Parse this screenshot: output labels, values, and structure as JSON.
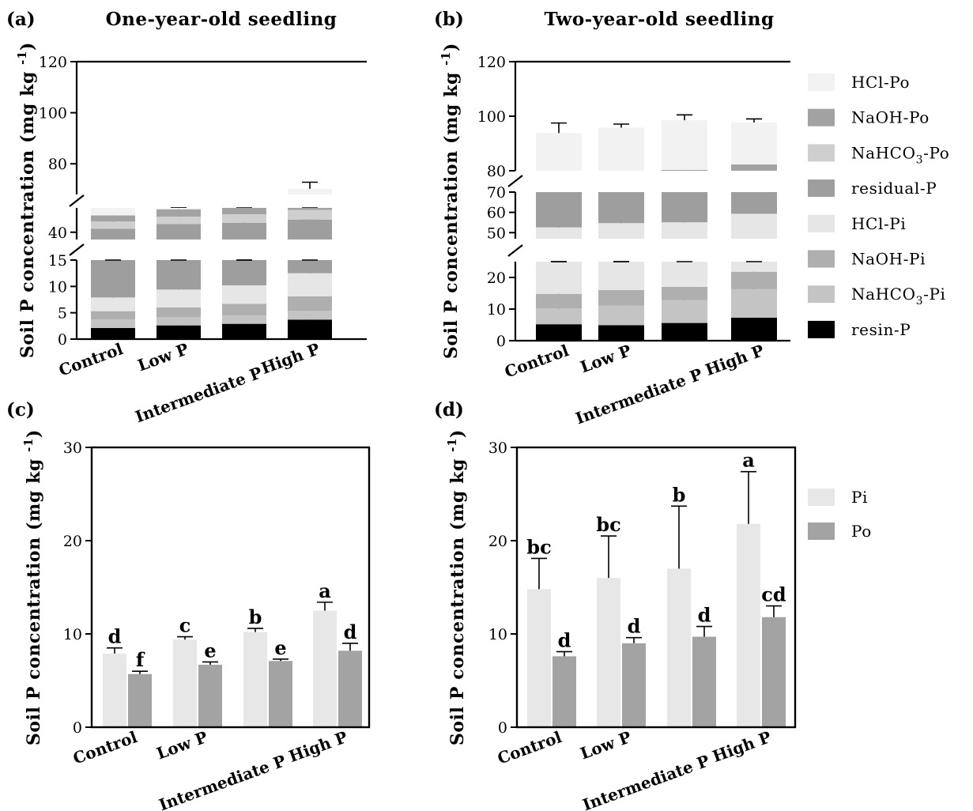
{
  "colors": {
    "resin-P": "#000000",
    "NaHCO3-Pi": "#c4c4c4",
    "NaOH-Pi": "#afafaf",
    "HCl-Pi": "#e6e6e6",
    "residual-P": "#9e9e9e",
    "NaHCO3-Po": "#cfcfcf",
    "NaOH-Po": "#a2a2a2",
    "HCl-Po": "#f2f2f2",
    "Pi": "#e7e7e7",
    "Po": "#a3a3a3"
  },
  "legend_top": {
    "items": [
      {
        "key": "HCl-Po",
        "label": "HCl-Po"
      },
      {
        "key": "NaOH-Po",
        "label": "NaOH-Po"
      },
      {
        "key": "NaHCO3-Po",
        "label": "NaHCO₃-Po"
      },
      {
        "key": "residual-P",
        "label": "residual-P"
      },
      {
        "key": "HCl-Pi",
        "label": "HCl-Pi"
      },
      {
        "key": "NaOH-Pi",
        "label": "NaOH-Pi"
      },
      {
        "key": "NaHCO3-Pi",
        "label": "NaHCO₃-Pi"
      },
      {
        "key": "resin-P",
        "label": "resin-P"
      }
    ]
  },
  "legend_bottom": {
    "items": [
      {
        "key": "Pi",
        "label": "Pi"
      },
      {
        "key": "Po",
        "label": "Po"
      }
    ]
  },
  "chart_data": [
    {
      "panel": "(a)",
      "title": "One-year-old seedling",
      "type": "bar",
      "stacked": true,
      "broken_axis": true,
      "ylabel": "Soil P concentration (mg kg⁻¹)",
      "categories": [
        "Control",
        "Low P",
        "Intermediate P",
        "High P"
      ],
      "y_segments": [
        {
          "range": [
            0,
            15
          ],
          "ticks": [
            0,
            5,
            10,
            15
          ]
        },
        {
          "range": [
            37,
            50
          ],
          "ticks": [
            40
          ]
        },
        {
          "range": [
            68,
            120
          ],
          "ticks": [
            80,
            100,
            120
          ]
        }
      ],
      "series": [
        {
          "key": "resin-P",
          "values": [
            2.1,
            2.6,
            2.9,
            3.7
          ],
          "errors": [
            0.3,
            0.4,
            0.4,
            0.5
          ]
        },
        {
          "key": "NaHCO3-Pi",
          "values": [
            1.6,
            1.6,
            1.6,
            1.7
          ],
          "errors": [
            0,
            0,
            0,
            0
          ]
        },
        {
          "key": "NaOH-Pi",
          "values": [
            1.6,
            1.8,
            2.2,
            2.7
          ],
          "errors": [
            0,
            0,
            0,
            0
          ]
        },
        {
          "key": "HCl-Pi",
          "values": [
            2.6,
            3.4,
            3.5,
            4.4
          ],
          "errors": [
            0.5,
            0.3,
            0.3,
            0.3
          ]
        },
        {
          "key": "residual-P",
          "values": [
            33.5,
            34.0,
            33.7,
            32.7
          ],
          "errors": [
            0.4,
            0.5,
            0.5,
            0.3
          ]
        },
        {
          "key": "NaHCO3-Po",
          "values": [
            3.0,
            3.0,
            3.5,
            4.0
          ],
          "errors": [
            4.5,
            4.5,
            4.5,
            4.5
          ]
        },
        {
          "key": "NaOH-Po",
          "values": [
            2.5,
            3.0,
            3.5,
            4.5
          ],
          "errors": [
            0.7,
            0.8,
            0.7,
            0.7
          ]
        },
        {
          "key": "HCl-Po",
          "values": [
            16.2,
            16.8,
            16.5,
            16.5
          ],
          "errors": [
            0.5,
            3.8,
            2.6,
            2.6
          ]
        }
      ]
    },
    {
      "panel": "(b)",
      "title": "Two-year-old seedling",
      "type": "bar",
      "stacked": true,
      "broken_axis": true,
      "ylabel": "Soil P concentration (mg kg⁻¹)",
      "categories": [
        "Control",
        "Low P",
        "Intermediate P",
        "High P"
      ],
      "y_segments": [
        {
          "range": [
            0,
            25
          ],
          "ticks": [
            0,
            10,
            20
          ]
        },
        {
          "range": [
            47,
            70
          ],
          "ticks": [
            50,
            60,
            70
          ]
        },
        {
          "range": [
            80,
            120
          ],
          "ticks": [
            80,
            100,
            120
          ]
        }
      ],
      "series": [
        {
          "key": "resin-P",
          "values": [
            5.2,
            4.9,
            5.6,
            7.3
          ],
          "errors": [
            1.5,
            1.0,
            2.3,
            3.2
          ]
        },
        {
          "key": "NaHCO3-Pi",
          "values": [
            5.0,
            6.2,
            7.2,
            9.0
          ],
          "errors": [
            1.5,
            2.2,
            2.8,
            2.5
          ]
        },
        {
          "key": "NaOH-Pi",
          "values": [
            4.6,
            4.9,
            4.2,
            5.5
          ],
          "errors": [
            0.9,
            1.6,
            1.6,
            0.8
          ]
        },
        {
          "key": "HCl-Pi",
          "values": [
            37.8,
            38.7,
            38.1,
            37.5
          ],
          "errors": [
            3.5,
            2.5,
            3.0,
            2.5
          ]
        },
        {
          "key": "residual-P",
          "values": [
            17.8,
            15.3,
            15.2,
            11.0
          ],
          "errors": [
            0,
            0,
            0,
            0
          ]
        },
        {
          "key": "NaHCO3-Po",
          "values": [
            5.0,
            6.5,
            7.0,
            8.0
          ],
          "errors": [
            3.0,
            4.0,
            3.5,
            3.5
          ]
        },
        {
          "key": "NaOH-Po",
          "values": [
            2.5,
            2.5,
            3.0,
            4.0
          ],
          "errors": [
            0.5,
            0.7,
            0.4,
            0.8
          ]
        },
        {
          "key": "HCl-Po",
          "values": [
            15.9,
            16.8,
            18.2,
            15.4
          ],
          "errors": [
            3.7,
            1.3,
            2.0,
            1.3
          ]
        }
      ]
    },
    {
      "panel": "(c)",
      "type": "bar",
      "grouped": true,
      "ylabel": "Soil P concentration (mg kg⁻¹)",
      "categories": [
        "Control",
        "Low P",
        "Intermediate P",
        "High P"
      ],
      "ylim": [
        0,
        30
      ],
      "yticks": [
        0,
        10,
        20,
        30
      ],
      "series": [
        {
          "key": "Pi",
          "values": [
            7.9,
            9.4,
            10.2,
            12.5
          ],
          "errors": [
            0.6,
            0.3,
            0.4,
            0.9
          ],
          "letters": [
            "d",
            "c",
            "b",
            "a"
          ]
        },
        {
          "key": "Po",
          "values": [
            5.7,
            6.7,
            7.1,
            8.2
          ],
          "errors": [
            0.3,
            0.3,
            0.2,
            0.8
          ],
          "letters": [
            "f",
            "e",
            "e",
            "d"
          ]
        }
      ]
    },
    {
      "panel": "(d)",
      "type": "bar",
      "grouped": true,
      "ylabel": "Soil P concentration (mg kg⁻¹)",
      "categories": [
        "Control",
        "Low P",
        "Intermediate P",
        "High P"
      ],
      "ylim": [
        0,
        30
      ],
      "yticks": [
        0,
        10,
        20,
        30
      ],
      "series": [
        {
          "key": "Pi",
          "values": [
            14.8,
            16.0,
            17.0,
            21.8
          ],
          "errors": [
            3.3,
            4.5,
            6.7,
            5.6
          ],
          "letters": [
            "bc",
            "bc",
            "b",
            "a"
          ]
        },
        {
          "key": "Po",
          "values": [
            7.6,
            9.0,
            9.7,
            11.8
          ],
          "errors": [
            0.5,
            0.6,
            1.1,
            1.2
          ],
          "letters": [
            "d",
            "d",
            "d",
            "cd"
          ]
        }
      ]
    }
  ]
}
